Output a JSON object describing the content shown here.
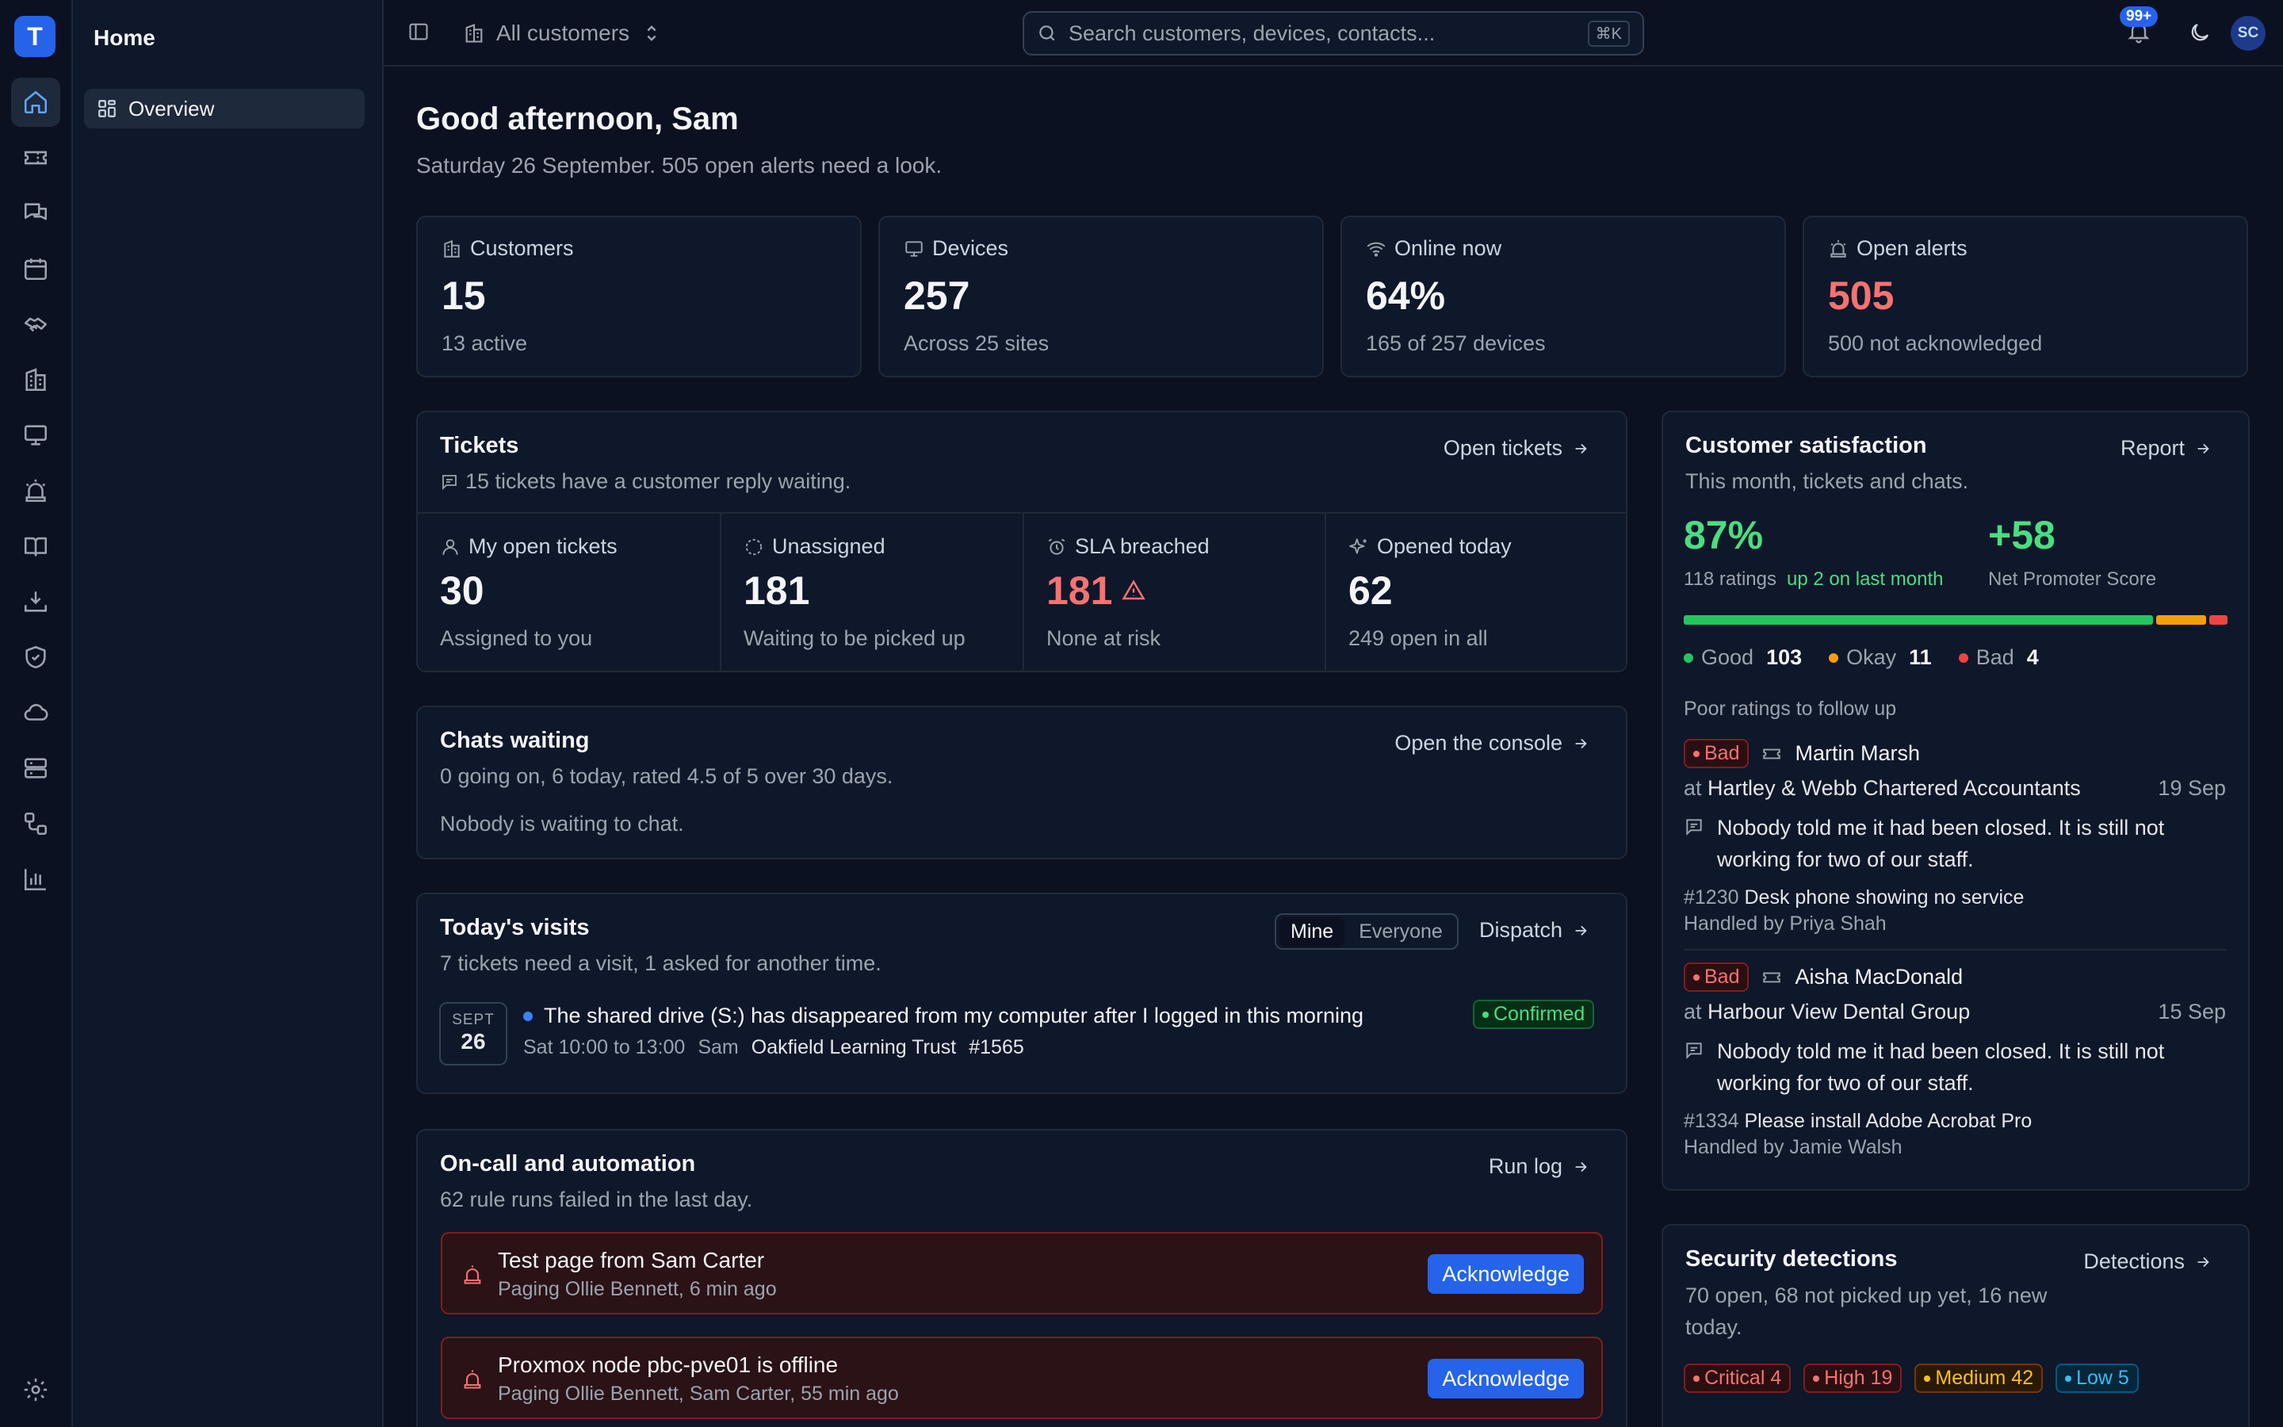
{
  "app": {
    "logo_letter": "T",
    "section_title": "Home"
  },
  "nav": {
    "rail": [
      "home-icon",
      "ticket-icon",
      "chat-icon",
      "calendar-icon",
      "handshake-icon",
      "building-icon",
      "monitor-icon",
      "siren-icon",
      "book-icon",
      "download-tray-icon",
      "shield-icon",
      "cloud-icon",
      "server-icon",
      "workflow-icon",
      "bar-chart-icon"
    ],
    "active": "home-icon",
    "settings": "gear-icon"
  },
  "sidebar": {
    "items": [
      {
        "label": "Overview",
        "icon": "grid-icon"
      }
    ]
  },
  "topbar": {
    "customer_switch": "All customers",
    "search_placeholder": "Search customers, devices, contacts...",
    "shortcut": "⌘K",
    "notifications_badge": "99+",
    "avatar_initials": "SC"
  },
  "header": {
    "greeting": "Good afternoon, Sam",
    "subtitle": "Saturday 26 September. 505 open alerts need a look."
  },
  "stats": [
    {
      "label": "Customers",
      "value": "15",
      "sub": "13 active",
      "icon": "building-icon"
    },
    {
      "label": "Devices",
      "value": "257",
      "sub": "Across 25 sites",
      "icon": "monitor-icon"
    },
    {
      "label": "Online now",
      "value": "64%",
      "sub": "165 of 257 devices",
      "icon": "wifi-icon"
    },
    {
      "label": "Open alerts",
      "value": "505",
      "sub": "500 not acknowledged",
      "icon": "siren-icon",
      "accent": "#f87171"
    }
  ],
  "tickets": {
    "title": "Tickets",
    "subtitle": "15 tickets have a customer reply waiting.",
    "link": "Open tickets",
    "cells": [
      {
        "label": "My open tickets",
        "value": "30",
        "sub": "Assigned to you",
        "icon": "user-icon"
      },
      {
        "label": "Unassigned",
        "value": "181",
        "sub": "Waiting to be picked up",
        "icon": "dashed-circle-icon"
      },
      {
        "label": "SLA breached",
        "value": "181",
        "sub": "None at risk",
        "icon": "alarm-clock-icon",
        "accent": "#f87171"
      },
      {
        "label": "Opened today",
        "value": "62",
        "sub": "249 open in all",
        "icon": "sparkles-icon"
      }
    ]
  },
  "chats": {
    "title": "Chats waiting",
    "subtitle": "0 going on, 6 today, rated 4.5 of 5 over 30 days.",
    "empty": "Nobody is waiting to chat.",
    "link": "Open the console"
  },
  "visits": {
    "title": "Today's visits",
    "subtitle": "7 tickets need a visit, 1 asked for another time.",
    "toggle": [
      "Mine",
      "Everyone"
    ],
    "toggle_active": "Mine",
    "link": "Dispatch",
    "items": [
      {
        "month": "SEPT",
        "day": "26",
        "title": "The shared drive (S:) has disappeared from my computer after I logged in this morning",
        "time": "Sat 10:00 to 13:00",
        "tech": "Sam",
        "customer": "Oakfield Learning Trust",
        "ticket": "#1565",
        "status": "Confirmed"
      }
    ]
  },
  "oncall": {
    "title": "On-call and automation",
    "subtitle": "62 rule runs failed in the last day.",
    "link": "Run log",
    "pages": [
      {
        "title": "Test page from Sam Carter",
        "sub": "Paging Ollie Bennett, 6 min ago",
        "action": "Acknowledge"
      },
      {
        "title": "Proxmox node pbc-pve01 is offline",
        "sub": "Paging Ollie Bennett, Sam Carter, 55 min ago",
        "action": "Acknowledge"
      }
    ]
  },
  "csat": {
    "title": "Customer satisfaction",
    "subtitle": "This month, tickets and chats.",
    "link": "Report",
    "score": "87%",
    "ratings": "118 ratings",
    "trend": "up 2 on last month",
    "nps": "+58",
    "nps_label": "Net Promoter Score",
    "breakdown": [
      {
        "label": "Good",
        "count": "103",
        "color": "#22c55e"
      },
      {
        "label": "Okay",
        "count": "11",
        "color": "#f59e0b"
      },
      {
        "label": "Bad",
        "count": "4",
        "color": "#ef4444"
      }
    ],
    "followup_title": "Poor ratings to follow up",
    "followups": [
      {
        "rating": "Bad",
        "name": "Martin Marsh",
        "at": "at",
        "org": "Hartley & Webb Chartered Accountants",
        "date": "19 Sep",
        "quote": "Nobody told me it had been closed. It is still not working for two of our staff.",
        "ticket_no": "#1230",
        "ticket": "Desk phone showing no service",
        "handled": "Handled by Priya Shah"
      },
      {
        "rating": "Bad",
        "name": "Aisha MacDonald",
        "at": "at",
        "org": "Harbour View Dental Group",
        "date": "15 Sep",
        "quote": "Nobody told me it had been closed. It is still not working for two of our staff.",
        "ticket_no": "#1334",
        "ticket": "Please install Adobe Acrobat Pro",
        "handled": "Handled by Jamie Walsh"
      }
    ]
  },
  "security": {
    "title": "Security detections",
    "subtitle": "70 open, 68 not picked up yet, 16 new today.",
    "link": "Detections",
    "badges": [
      "Critical 4",
      "High 19",
      "Medium 42",
      "Low 5"
    ]
  }
}
